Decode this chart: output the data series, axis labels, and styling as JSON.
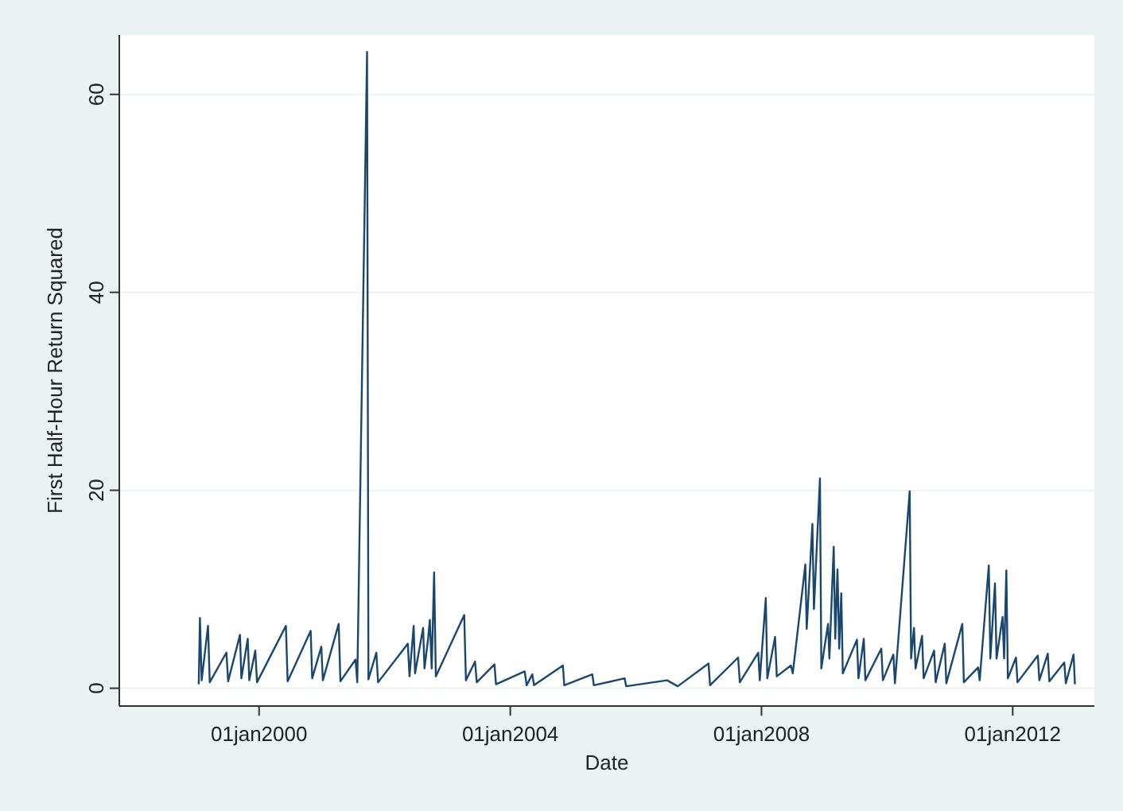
{
  "chart_data": {
    "type": "line",
    "xlabel": "Date",
    "ylabel": "First Half-Hour Return Squared",
    "xlim": [
      "1997-10-10",
      "2013-04-20"
    ],
    "ylim": [
      -1.8,
      66
    ],
    "xticks": [
      {
        "value": "2000-01-01",
        "label": "01jan2000"
      },
      {
        "value": "2004-01-01",
        "label": "01jan2004"
      },
      {
        "value": "2008-01-01",
        "label": "01jan2008"
      },
      {
        "value": "2012-01-01",
        "label": "01jan2012"
      }
    ],
    "yticks": [
      0,
      20,
      40,
      60
    ],
    "grid": "y",
    "x": [
      "1999-01-15",
      "1999-01-22",
      "1999-02-01",
      "1999-03-10",
      "1999-03-20",
      "1999-06-25",
      "1999-07-05",
      "1999-09-12",
      "1999-09-20",
      "1999-10-27",
      "1999-11-05",
      "1999-12-10",
      "1999-12-20",
      "2000-06-05",
      "2000-06-15",
      "2000-10-27",
      "2000-11-05",
      "2000-12-28",
      "2001-01-06",
      "2001-04-08",
      "2001-04-18",
      "2001-07-15",
      "2001-07-25",
      "2001-09-20",
      "2001-09-28",
      "2001-11-13",
      "2001-11-23",
      "2002-05-15",
      "2002-05-25",
      "2002-06-18",
      "2002-06-26",
      "2002-08-12",
      "2002-08-20",
      "2002-09-10",
      "2002-09-20",
      "2002-10-01",
      "2002-10-15",
      "2002-10-25",
      "2003-04-08",
      "2003-04-18",
      "2003-06-10",
      "2003-06-20",
      "2003-10-01",
      "2003-10-10",
      "2004-03-25",
      "2004-04-05",
      "2004-05-08",
      "2004-05-18",
      "2004-11-02",
      "2004-11-10",
      "2005-04-22",
      "2005-05-01",
      "2005-10-27",
      "2005-11-05",
      "2006-07-01",
      "2006-09-01",
      "2007-02-27",
      "2007-03-08",
      "2007-08-18",
      "2007-08-28",
      "2007-12-13",
      "2007-12-22",
      "2008-01-26",
      "2008-02-04",
      "2008-03-20",
      "2008-03-30",
      "2008-06-20",
      "2008-07-01",
      "2008-09-12",
      "2008-09-20",
      "2008-10-23",
      "2008-11-01",
      "2008-12-06",
      "2008-12-14",
      "2009-01-22",
      "2009-01-30",
      "2009-02-24",
      "2009-03-05",
      "2009-03-18",
      "2009-03-28",
      "2009-04-09",
      "2009-04-18",
      "2009-07-09",
      "2009-07-18",
      "2009-08-18",
      "2009-08-27",
      "2009-11-28",
      "2009-12-07",
      "2010-02-06",
      "2010-02-15",
      "2010-05-12",
      "2010-05-20",
      "2010-06-06",
      "2010-06-15",
      "2010-07-23",
      "2010-08-01",
      "2010-10-01",
      "2010-10-10",
      "2010-12-02",
      "2010-12-11",
      "2011-03-14",
      "2011-03-23",
      "2011-06-14",
      "2011-06-23",
      "2011-08-15",
      "2011-08-24",
      "2011-09-20",
      "2011-09-29",
      "2011-11-03",
      "2011-11-12",
      "2011-11-25",
      "2011-12-04",
      "2012-01-20",
      "2012-01-29",
      "2012-05-26",
      "2012-06-04",
      "2012-07-23",
      "2012-08-01",
      "2012-10-27",
      "2012-11-05",
      "2012-12-20",
      "2012-12-28"
    ],
    "series": [
      {
        "color": "#1a476f",
        "values": [
          0.4,
          7.1,
          0.8,
          6.3,
          0.6,
          3.6,
          0.7,
          5.4,
          1.0,
          5.0,
          0.8,
          3.8,
          0.6,
          6.3,
          0.7,
          5.8,
          1.0,
          4.2,
          0.8,
          6.5,
          0.7,
          2.9,
          0.6,
          64.3,
          0.9,
          3.6,
          0.6,
          4.5,
          1.2,
          6.3,
          1.5,
          6.1,
          2.0,
          5.0,
          6.9,
          2.0,
          11.7,
          1.2,
          7.4,
          0.8,
          2.7,
          0.6,
          2.4,
          0.4,
          1.7,
          0.3,
          1.4,
          0.3,
          2.3,
          0.3,
          1.4,
          0.3,
          1.0,
          0.2,
          0.8,
          0.2,
          2.5,
          0.3,
          3.1,
          0.6,
          3.6,
          0.8,
          9.1,
          1.0,
          5.2,
          1.2,
          2.3,
          1.5,
          12.5,
          6.0,
          16.6,
          8.0,
          21.2,
          2.0,
          6.5,
          3.0,
          14.3,
          5.0,
          12.0,
          4.0,
          9.6,
          1.5,
          4.9,
          1.0,
          5.0,
          0.8,
          4.0,
          0.8,
          3.4,
          0.5,
          19.9,
          3.0,
          6.1,
          2.0,
          5.3,
          1.0,
          3.8,
          0.6,
          4.5,
          0.5,
          6.5,
          0.6,
          2.1,
          0.8,
          12.4,
          3.0,
          10.6,
          3.0,
          7.2,
          3.0,
          11.9,
          1.0,
          3.1,
          0.6,
          3.3,
          0.8,
          3.5,
          0.7,
          2.6,
          0.5,
          3.4,
          0.4
        ]
      }
    ]
  }
}
